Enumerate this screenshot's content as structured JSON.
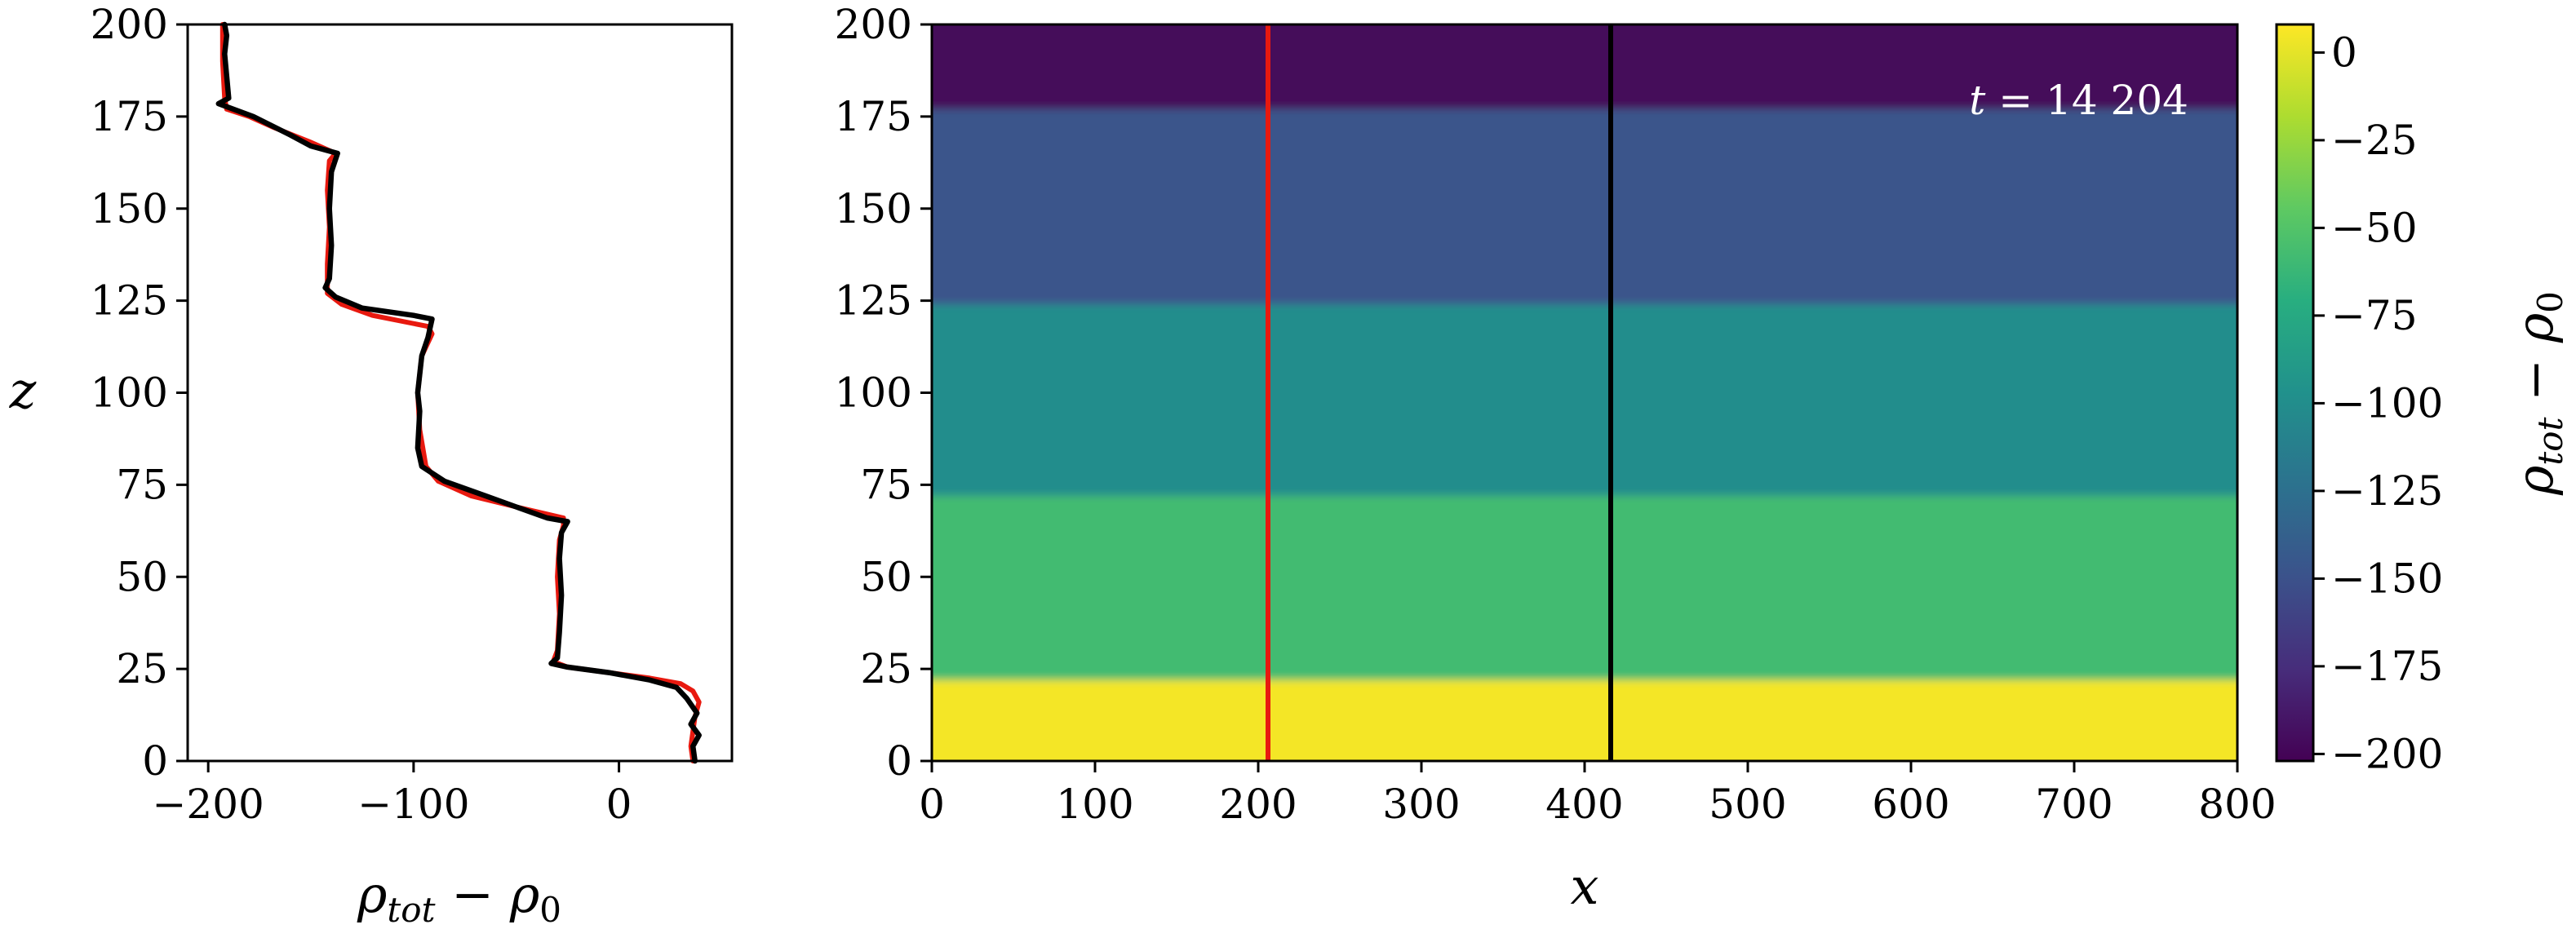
{
  "chart_data": [
    {
      "type": "line",
      "xlabel_parts": {
        "base1": "ρ",
        "sub1": "tot",
        "op": " − ",
        "base2": "ρ",
        "sub2": "0"
      },
      "ylabel": "z",
      "xlim": [
        -210,
        55
      ],
      "ylim": [
        0,
        200
      ],
      "xticks": [
        -200,
        -100,
        0
      ],
      "xtick_labels": [
        "−200",
        "−100",
        "0"
      ],
      "yticks": [
        0,
        25,
        50,
        75,
        100,
        125,
        150,
        175,
        200
      ],
      "ytick_labels": [
        "0",
        "25",
        "50",
        "75",
        "100",
        "125",
        "150",
        "175",
        "200"
      ],
      "series": [
        {
          "color": "#e8190f",
          "points": [
            [
              36,
              0
            ],
            [
              35,
              4
            ],
            [
              36,
              8
            ],
            [
              37,
              12
            ],
            [
              39,
              16
            ],
            [
              36,
              19
            ],
            [
              30,
              21
            ],
            [
              15,
              22.5
            ],
            [
              -5,
              24
            ],
            [
              -25,
              25.5
            ],
            [
              -32,
              27
            ],
            [
              -30,
              30
            ],
            [
              -29,
              40
            ],
            [
              -30,
              50
            ],
            [
              -29,
              60
            ],
            [
              -27,
              64
            ],
            [
              -27,
              66
            ],
            [
              -50,
              69
            ],
            [
              -72,
              72
            ],
            [
              -88,
              76
            ],
            [
              -94,
              80
            ],
            [
              -97,
              90
            ],
            [
              -98,
              100
            ],
            [
              -96,
              110
            ],
            [
              -91,
              116
            ],
            [
              -93,
              118
            ],
            [
              -120,
              121
            ],
            [
              -135,
              124
            ],
            [
              -142,
              127
            ],
            [
              -142,
              135
            ],
            [
              -141,
              145
            ],
            [
              -142,
              155
            ],
            [
              -141,
              163
            ],
            [
              -138,
              165
            ],
            [
              -150,
              168
            ],
            [
              -168,
              172
            ],
            [
              -180,
              175
            ],
            [
              -191,
              177
            ],
            [
              -192,
              180
            ],
            [
              -193,
              190
            ],
            [
              -193,
              200
            ]
          ]
        },
        {
          "color": "#000000",
          "points": [
            [
              37,
              0
            ],
            [
              36,
              4
            ],
            [
              39,
              7
            ],
            [
              35,
              10
            ],
            [
              38,
              13
            ],
            [
              33,
              17
            ],
            [
              28,
              20
            ],
            [
              15,
              22
            ],
            [
              -5,
              24
            ],
            [
              -25,
              25.5
            ],
            [
              -33,
              26.5
            ],
            [
              -30,
              28
            ],
            [
              -29,
              35
            ],
            [
              -28,
              45
            ],
            [
              -29,
              55
            ],
            [
              -28,
              62
            ],
            [
              -25,
              65
            ],
            [
              -35,
              66
            ],
            [
              -50,
              69
            ],
            [
              -65,
              72
            ],
            [
              -85,
              76
            ],
            [
              -96,
              80
            ],
            [
              -98,
              85
            ],
            [
              -97,
              95
            ],
            [
              -98,
              100
            ],
            [
              -96,
              110
            ],
            [
              -93,
              115
            ],
            [
              -91,
              120
            ],
            [
              -100,
              121
            ],
            [
              -125,
              123
            ],
            [
              -138,
              126
            ],
            [
              -143,
              128.5
            ],
            [
              -141,
              131
            ],
            [
              -140,
              140
            ],
            [
              -141,
              150
            ],
            [
              -140,
              160
            ],
            [
              -137,
              165
            ],
            [
              -150,
              167
            ],
            [
              -160,
              170
            ],
            [
              -178,
              175
            ],
            [
              -195,
              178.5
            ],
            [
              -190,
              180
            ],
            [
              -191,
              186
            ],
            [
              -192,
              192
            ],
            [
              -191,
              197
            ],
            [
              -192,
              200
            ]
          ]
        }
      ]
    },
    {
      "type": "heatmap",
      "xlabel": "x",
      "xlim": [
        0,
        800
      ],
      "ylim": [
        0,
        200
      ],
      "xticks": [
        0,
        100,
        200,
        300,
        400,
        500,
        600,
        700,
        800
      ],
      "xtick_labels": [
        "0",
        "100",
        "200",
        "300",
        "400",
        "500",
        "600",
        "700",
        "800"
      ],
      "yticks": [
        0,
        25,
        50,
        75,
        100,
        125,
        150,
        175,
        200
      ],
      "ytick_labels": [
        "0",
        "25",
        "50",
        "75",
        "100",
        "125",
        "150",
        "175",
        "200"
      ],
      "annotation": {
        "var": "t",
        "rest": " = 14 204"
      },
      "colormap": "viridis",
      "vmin": -202,
      "vmax": 8,
      "layers": [
        {
          "z0": 0,
          "z1": 22,
          "value": 5
        },
        {
          "z0": 22,
          "z1": 72,
          "value": -58
        },
        {
          "z0": 72,
          "z1": 124,
          "value": -100
        },
        {
          "z0": 124,
          "z1": 177,
          "value": -148
        },
        {
          "z0": 177,
          "z1": 200,
          "value": -198
        }
      ],
      "vertical_lines": [
        {
          "x": 206,
          "color": "#e8190f"
        },
        {
          "x": 416,
          "color": "#000000"
        }
      ],
      "colorbar": {
        "label_parts": {
          "base1": "ρ",
          "sub1": "tot",
          "op": " − ",
          "base2": "ρ",
          "sub2": "0"
        },
        "ticks": [
          0,
          -25,
          -50,
          -75,
          -100,
          -125,
          -150,
          -175,
          -200
        ],
        "tick_labels": [
          "0",
          "−25",
          "−50",
          "−75",
          "−100",
          "−125",
          "−150",
          "−175",
          "−200"
        ]
      }
    }
  ]
}
